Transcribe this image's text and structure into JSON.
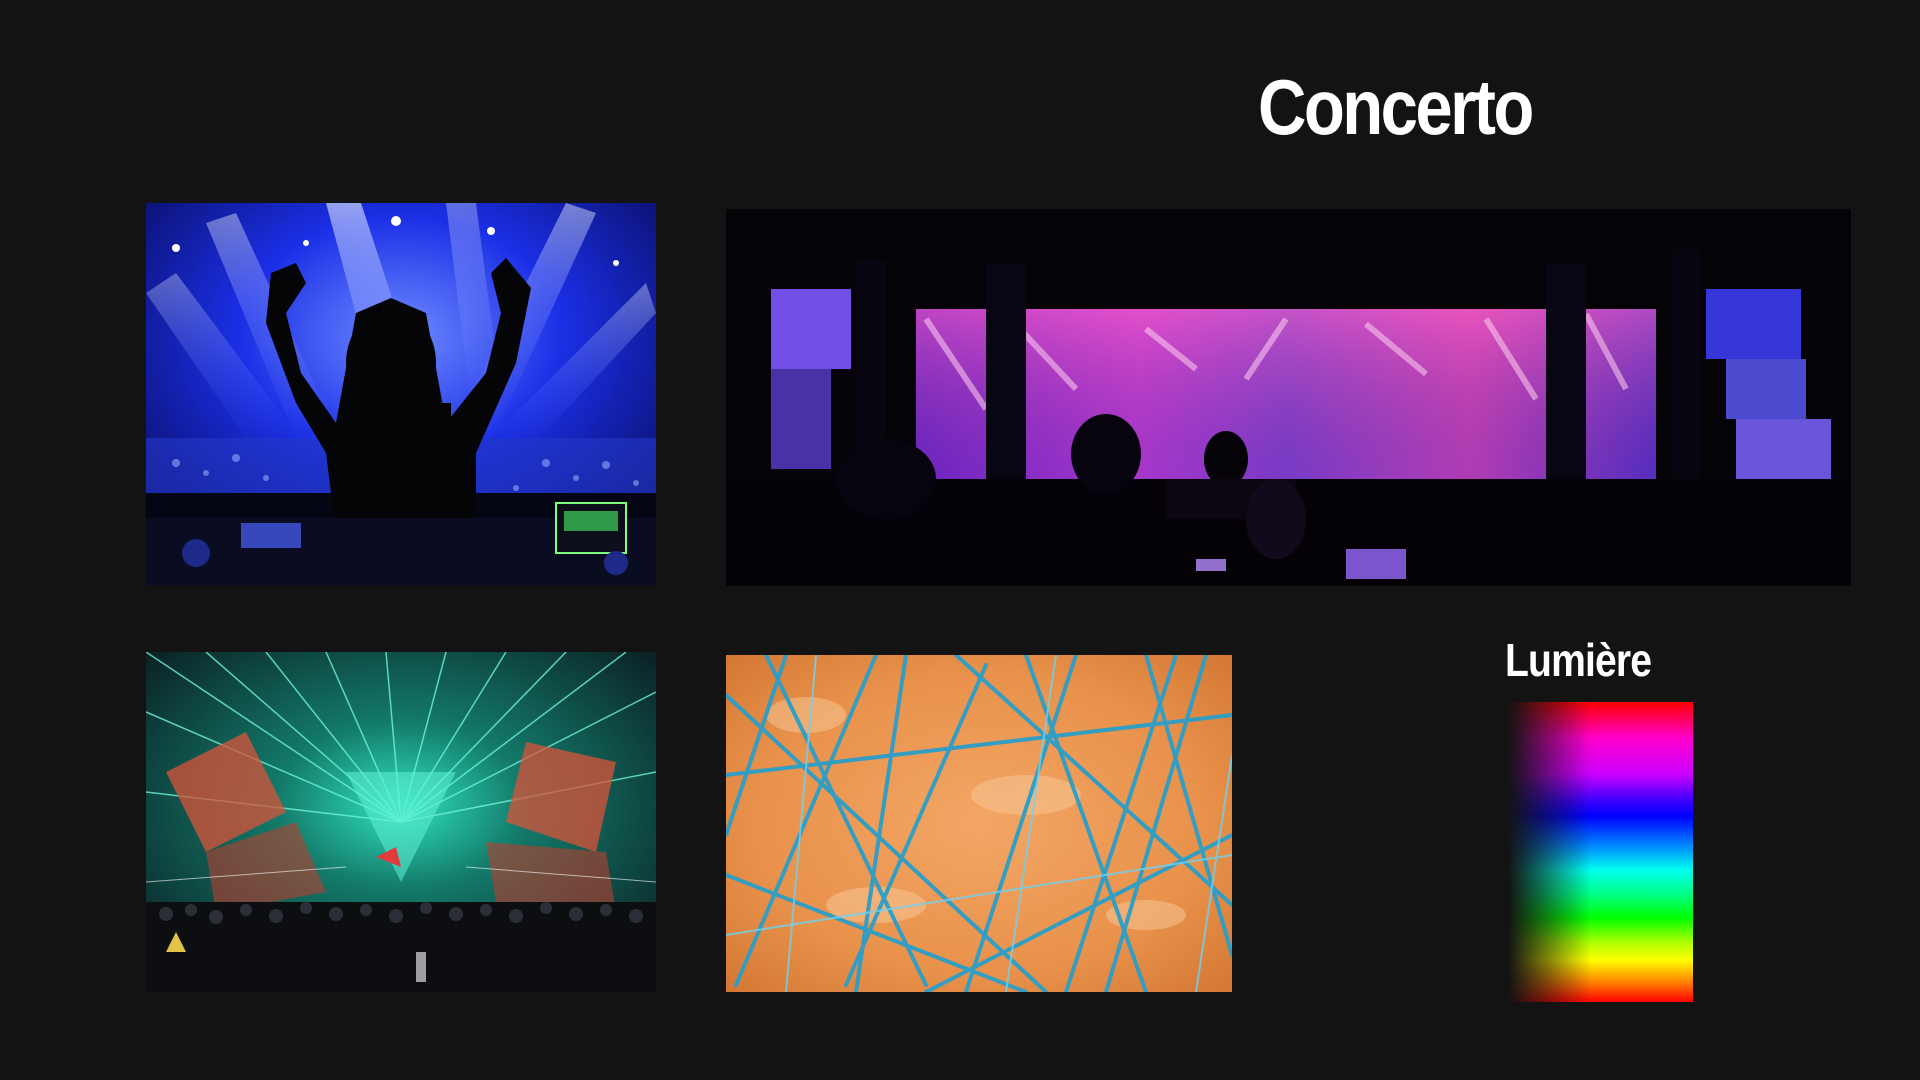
{
  "board": {
    "title": "Concerto",
    "light_label": "Lumière"
  },
  "images": [
    {
      "name": "dj-silhouette-photo",
      "icon": "dj-crowd-blue-lights"
    },
    {
      "name": "stage-led-wall-photo",
      "icon": "purple-led-stage"
    },
    {
      "name": "laser-show-photo",
      "icon": "green-laser-festival"
    },
    {
      "name": "blue-lines-painting",
      "icon": "orange-canvas-blue-strokes"
    }
  ],
  "colors": {
    "background": "#131313",
    "text": "#ffffff",
    "dj_blue": "#1a2cff",
    "stage_purple": "#b23cf0",
    "laser_green": "#1fd6a8",
    "painting_orange": "#e8914a",
    "painting_blue": "#2a9ec9"
  },
  "spectrum": {
    "stops": [
      "#ff0000",
      "#ff00cc",
      "#cc00ff",
      "#0000ff",
      "#00ffee",
      "#00ff00",
      "#ffff00",
      "#ff0000"
    ]
  }
}
